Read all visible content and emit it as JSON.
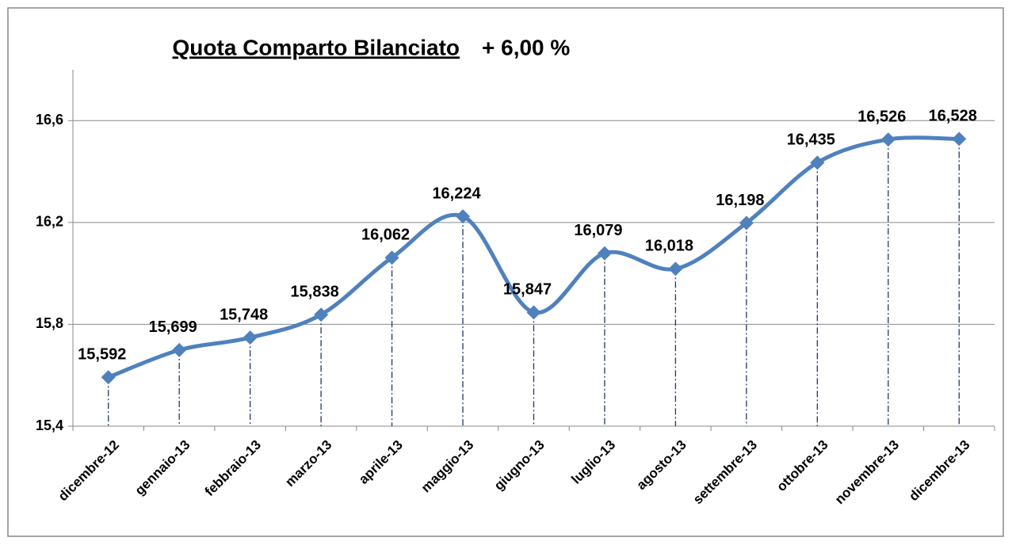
{
  "chart_data": {
    "type": "line",
    "title": "Quota Comparto Bilanciato",
    "subtitle": "+ 6,00 %",
    "categories": [
      "dicembre-12",
      "gennaio-13",
      "febbraio-13",
      "marzo-13",
      "aprile-13",
      "maggio-13",
      "giugno-13",
      "luglio-13",
      "agosto-13",
      "settembre-13",
      "ottobre-13",
      "novembre-13",
      "dicembre-13"
    ],
    "series": [
      {
        "name": "Quota",
        "color": "#4f81bd",
        "values": [
          15.592,
          15.699,
          15.748,
          15.838,
          16.062,
          16.224,
          15.847,
          16.079,
          16.018,
          16.198,
          16.435,
          16.526,
          16.528
        ],
        "value_labels": [
          "15,592",
          "15,699",
          "15,748",
          "15,838",
          "16,062",
          "16,224",
          "15,847",
          "16,079",
          "16,018",
          "16,198",
          "16,435",
          "16,526",
          "16,528"
        ]
      }
    ],
    "ylim": [
      15.4,
      16.8
    ],
    "yticks": [
      {
        "value": 15.4,
        "label": "15,4"
      },
      {
        "value": 15.8,
        "label": "15,8"
      },
      {
        "value": 16.2,
        "label": "16,2"
      },
      {
        "value": 16.6,
        "label": "16,6"
      }
    ],
    "grid": true,
    "smooth": true,
    "drop_lines": true
  }
}
